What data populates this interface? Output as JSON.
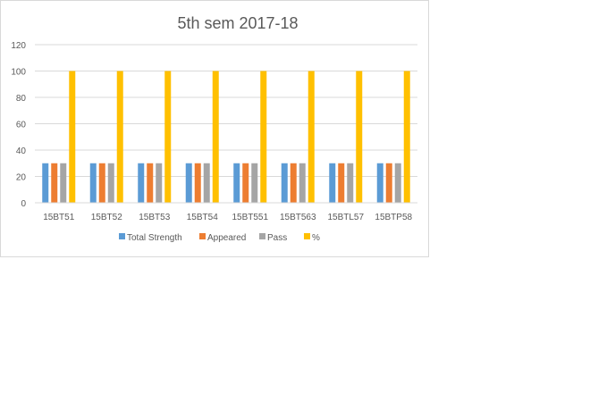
{
  "chart_data": {
    "type": "bar",
    "title": "5th sem 2017-18",
    "xlabel": "",
    "ylabel": "",
    "ylim": [
      0,
      120
    ],
    "yticks": [
      0,
      20,
      40,
      60,
      80,
      100,
      120
    ],
    "grid": true,
    "legend_position": "bottom",
    "categories": [
      "15BT51",
      "15BT52",
      "15BT53",
      "15BT54",
      "15BT551",
      "15BT563",
      "15BTL57",
      "15BTP58"
    ],
    "series": [
      {
        "name": "Total Strength",
        "color": "#5b9bd5",
        "values": [
          30,
          30,
          30,
          30,
          30,
          30,
          30,
          30
        ]
      },
      {
        "name": "Appeared",
        "color": "#ed7d31",
        "values": [
          30,
          30,
          30,
          30,
          30,
          30,
          30,
          30
        ]
      },
      {
        "name": "Pass",
        "color": "#a5a5a5",
        "values": [
          30,
          30,
          30,
          30,
          30,
          30,
          30,
          30
        ]
      },
      {
        "name": "%",
        "color": "#ffc000",
        "values": [
          100,
          100,
          100,
          100,
          100,
          100,
          100,
          100
        ]
      }
    ]
  }
}
